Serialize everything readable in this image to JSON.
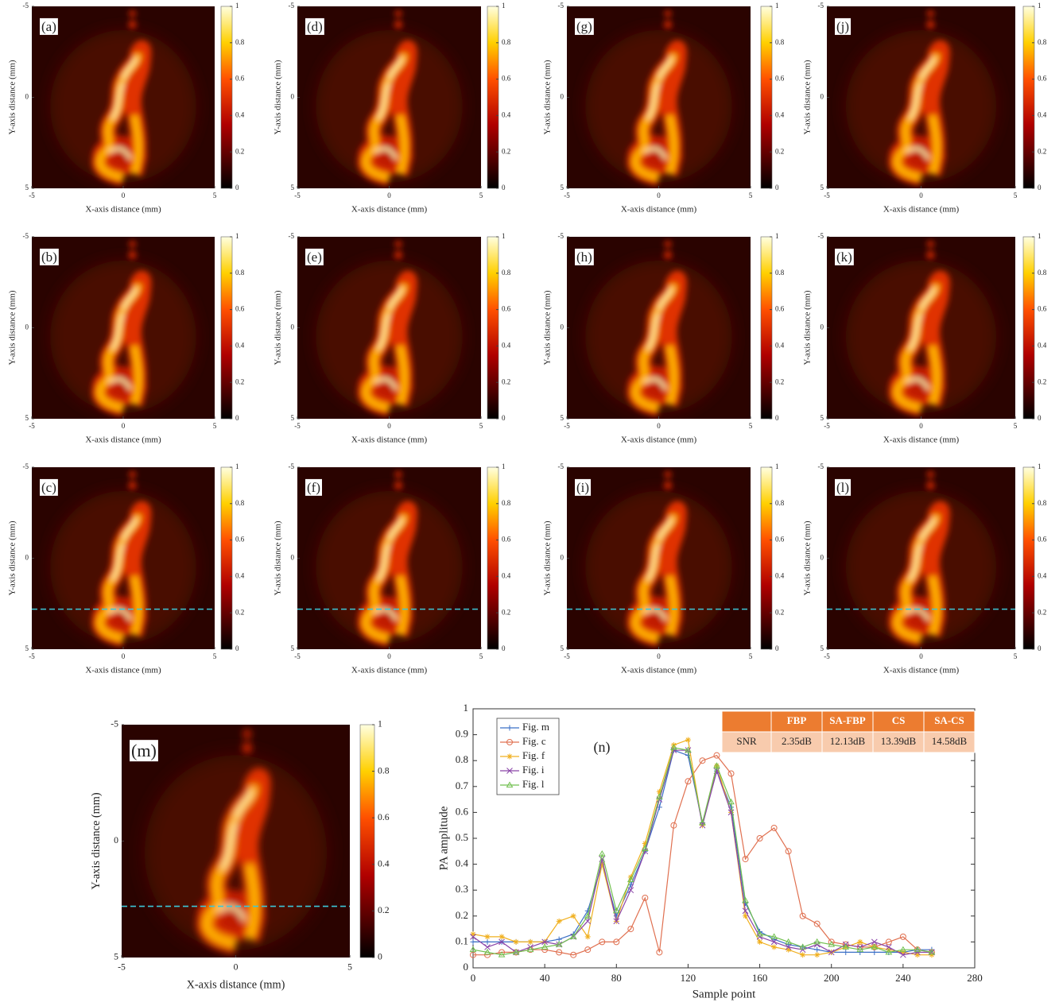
{
  "chart_data": [
    {
      "type": "image",
      "label": "(a)",
      "xlabel": "X-axis distance (mm)",
      "ylabel": "Y-axis distance (mm)",
      "xlim": [
        -5,
        5
      ],
      "ylim": [
        5,
        -5
      ],
      "xticks": [
        -5,
        0,
        5
      ],
      "yticks": [
        -5,
        0,
        5
      ],
      "clim": [
        0,
        1
      ],
      "cticks": [
        0,
        0.2,
        0.4,
        0.6,
        0.8,
        1
      ],
      "dashed_line": false
    },
    {
      "type": "image",
      "label": "(b)",
      "xlabel": "X-axis distance (mm)",
      "ylabel": "Y-axis distance (mm)",
      "xlim": [
        -5,
        5
      ],
      "ylim": [
        5,
        -5
      ],
      "xticks": [
        -5,
        0,
        5
      ],
      "yticks": [
        -5,
        0,
        5
      ],
      "clim": [
        0,
        1
      ],
      "cticks": [
        0,
        0.2,
        0.4,
        0.6,
        0.8,
        1
      ],
      "dashed_line": false
    },
    {
      "type": "image",
      "label": "(c)",
      "xlabel": "X-axis distance (mm)",
      "ylabel": "Y-axis distance (mm)",
      "xlim": [
        -5,
        5
      ],
      "ylim": [
        5,
        -5
      ],
      "xticks": [
        -5,
        0,
        5
      ],
      "yticks": [
        -5,
        0,
        5
      ],
      "clim": [
        0,
        1
      ],
      "cticks": [
        0,
        0.2,
        0.4,
        0.6,
        0.8,
        1
      ],
      "dashed_line": true
    },
    {
      "type": "image",
      "label": "(d)",
      "xlabel": "X-axis distance (mm)",
      "ylabel": "Y-axis distance (mm)",
      "xlim": [
        -5,
        5
      ],
      "ylim": [
        5,
        -5
      ],
      "xticks": [
        -5,
        0,
        5
      ],
      "yticks": [
        -5,
        0,
        5
      ],
      "clim": [
        0,
        1
      ],
      "cticks": [
        0,
        0.2,
        0.4,
        0.6,
        0.8,
        1
      ],
      "dashed_line": false
    },
    {
      "type": "image",
      "label": "(e)",
      "xlabel": "X-axis distance (mm)",
      "ylabel": "Y-axis distance (mm)",
      "xlim": [
        -5,
        5
      ],
      "ylim": [
        5,
        -5
      ],
      "xticks": [
        -5,
        0,
        5
      ],
      "yticks": [
        -5,
        0,
        5
      ],
      "clim": [
        0,
        1
      ],
      "cticks": [
        0,
        0.2,
        0.4,
        0.6,
        0.8,
        1
      ],
      "dashed_line": false
    },
    {
      "type": "image",
      "label": "(f)",
      "xlabel": "X-axis distance (mm)",
      "ylabel": "Y-axis distance (mm)",
      "xlim": [
        -5,
        5
      ],
      "ylim": [
        5,
        -5
      ],
      "xticks": [
        -5,
        0,
        5
      ],
      "yticks": [
        -5,
        0,
        5
      ],
      "clim": [
        0,
        1
      ],
      "cticks": [
        0,
        0.2,
        0.4,
        0.6,
        0.8,
        1
      ],
      "dashed_line": true
    },
    {
      "type": "image",
      "label": "(g)",
      "xlabel": "X-axis distance (mm)",
      "ylabel": "Y-axis distance (mm)",
      "xlim": [
        -5,
        5
      ],
      "ylim": [
        5,
        -5
      ],
      "xticks": [
        -5,
        0,
        5
      ],
      "yticks": [
        -5,
        0,
        5
      ],
      "clim": [
        0,
        1
      ],
      "cticks": [
        0,
        0.2,
        0.4,
        0.6,
        0.8,
        1
      ],
      "dashed_line": false
    },
    {
      "type": "image",
      "label": "(h)",
      "xlabel": "X-axis distance (mm)",
      "ylabel": "Y-axis distance (mm)",
      "xlim": [
        -5,
        5
      ],
      "ylim": [
        5,
        -5
      ],
      "xticks": [
        -5,
        0,
        5
      ],
      "yticks": [
        -5,
        0,
        5
      ],
      "clim": [
        0,
        1
      ],
      "cticks": [
        0,
        0.2,
        0.4,
        0.6,
        0.8,
        1
      ],
      "dashed_line": false
    },
    {
      "type": "image",
      "label": "(i)",
      "xlabel": "X-axis distance (mm)",
      "ylabel": "Y-axis distance (mm)",
      "xlim": [
        -5,
        5
      ],
      "ylim": [
        5,
        -5
      ],
      "xticks": [
        -5,
        0,
        5
      ],
      "yticks": [
        -5,
        0,
        5
      ],
      "clim": [
        0,
        1
      ],
      "cticks": [
        0,
        0.2,
        0.4,
        0.6,
        0.8,
        1
      ],
      "dashed_line": true
    },
    {
      "type": "image",
      "label": "(j)",
      "xlabel": "X-axis distance (mm)",
      "ylabel": "Y-axis distance (mm)",
      "xlim": [
        -5,
        5
      ],
      "ylim": [
        5,
        -5
      ],
      "xticks": [
        -5,
        0,
        5
      ],
      "yticks": [
        -5,
        0,
        5
      ],
      "clim": [
        0,
        1
      ],
      "cticks": [
        0,
        0.2,
        0.4,
        0.6,
        0.8,
        1
      ],
      "dashed_line": false
    },
    {
      "type": "image",
      "label": "(k)",
      "xlabel": "X-axis distance (mm)",
      "ylabel": "Y-axis distance (mm)",
      "xlim": [
        -5,
        5
      ],
      "ylim": [
        5,
        -5
      ],
      "xticks": [
        -5,
        0,
        5
      ],
      "yticks": [
        -5,
        0,
        5
      ],
      "clim": [
        0,
        1
      ],
      "cticks": [
        0,
        0.2,
        0.4,
        0.6,
        0.8,
        1
      ],
      "dashed_line": false
    },
    {
      "type": "image",
      "label": "(l)",
      "xlabel": "X-axis distance (mm)",
      "ylabel": "Y-axis distance (mm)",
      "xlim": [
        -5,
        5
      ],
      "ylim": [
        5,
        -5
      ],
      "xticks": [
        -5,
        0,
        5
      ],
      "yticks": [
        -5,
        0,
        5
      ],
      "clim": [
        0,
        1
      ],
      "cticks": [
        0,
        0.2,
        0.4,
        0.6,
        0.8,
        1
      ],
      "dashed_line": true
    },
    {
      "type": "image",
      "label": "(m)",
      "xlabel": "X-axis distance (mm)",
      "ylabel": "Y-axis distance (mm)",
      "xlim": [
        -5,
        5
      ],
      "ylim": [
        5,
        -5
      ],
      "xticks": [
        -5,
        0,
        5
      ],
      "yticks": [
        -5,
        0,
        5
      ],
      "clim": [
        0,
        1
      ],
      "cticks": [
        0,
        0.2,
        0.4,
        0.6,
        0.8,
        1
      ],
      "dashed_line": true
    },
    {
      "type": "line",
      "annotation": "(n)",
      "xlabel": "Sample point",
      "ylabel": "PA amplitude",
      "xlim": [
        0,
        280
      ],
      "ylim": [
        0,
        1
      ],
      "xticks": [
        0,
        40,
        80,
        120,
        160,
        200,
        240,
        280
      ],
      "yticks": [
        0,
        0.1,
        0.2,
        0.3,
        0.4,
        0.5,
        0.6,
        0.7,
        0.8,
        0.9,
        1
      ],
      "legend": "upper left",
      "x": [
        0,
        8,
        16,
        24,
        32,
        40,
        48,
        56,
        64,
        72,
        80,
        88,
        96,
        104,
        112,
        120,
        128,
        136,
        144,
        152,
        160,
        168,
        176,
        184,
        192,
        200,
        208,
        216,
        224,
        232,
        240,
        248,
        256
      ],
      "series": [
        {
          "name": "Fig. m",
          "color": "#3b6fc6",
          "marker": "plus",
          "values": [
            0.1,
            0.1,
            0.1,
            0.1,
            0.1,
            0.1,
            0.11,
            0.13,
            0.22,
            0.4,
            0.2,
            0.32,
            0.45,
            0.62,
            0.84,
            0.82,
            0.56,
            0.76,
            0.62,
            0.25,
            0.14,
            0.11,
            0.09,
            0.08,
            0.07,
            0.06,
            0.06,
            0.06,
            0.06,
            0.06,
            0.06,
            0.07,
            0.07
          ]
        },
        {
          "name": "Fig. c",
          "color": "#e07050",
          "marker": "circle",
          "values": [
            0.05,
            0.05,
            0.06,
            0.06,
            0.07,
            0.07,
            0.06,
            0.05,
            0.07,
            0.1,
            0.1,
            0.15,
            0.27,
            0.06,
            0.55,
            0.72,
            0.8,
            0.82,
            0.75,
            0.42,
            0.5,
            0.54,
            0.45,
            0.2,
            0.17,
            0.1,
            0.09,
            0.08,
            0.08,
            0.1,
            0.12,
            0.07,
            0.06
          ]
        },
        {
          "name": "Fig. f",
          "color": "#f0b020",
          "marker": "star",
          "values": [
            0.13,
            0.12,
            0.12,
            0.1,
            0.1,
            0.1,
            0.18,
            0.2,
            0.12,
            0.4,
            0.18,
            0.35,
            0.48,
            0.68,
            0.86,
            0.88,
            0.55,
            0.78,
            0.6,
            0.2,
            0.1,
            0.08,
            0.07,
            0.05,
            0.05,
            0.06,
            0.08,
            0.1,
            0.08,
            0.07,
            0.06,
            0.05,
            0.05
          ]
        },
        {
          "name": "Fig. i",
          "color": "#8a45a8",
          "marker": "cross",
          "values": [
            0.12,
            0.08,
            0.1,
            0.06,
            0.08,
            0.1,
            0.09,
            0.12,
            0.18,
            0.42,
            0.18,
            0.3,
            0.45,
            0.65,
            0.84,
            0.84,
            0.55,
            0.76,
            0.6,
            0.22,
            0.12,
            0.1,
            0.08,
            0.07,
            0.09,
            0.06,
            0.09,
            0.08,
            0.1,
            0.08,
            0.05,
            0.06,
            0.06
          ]
        },
        {
          "name": "Fig. l",
          "color": "#72c050",
          "marker": "triangle",
          "values": [
            0.07,
            0.06,
            0.05,
            0.06,
            0.07,
            0.08,
            0.09,
            0.12,
            0.2,
            0.44,
            0.22,
            0.34,
            0.46,
            0.66,
            0.85,
            0.84,
            0.56,
            0.78,
            0.64,
            0.26,
            0.13,
            0.12,
            0.1,
            0.08,
            0.1,
            0.09,
            0.08,
            0.07,
            0.08,
            0.06,
            0.07,
            0.07,
            0.06
          ]
        }
      ],
      "table": {
        "columns": [
          "FBP",
          "SA-FBP",
          "CS",
          "SA-CS"
        ],
        "rows": [
          [
            "SNR",
            "2.35dB",
            "12.13dB",
            "13.39dB",
            "14.58dB"
          ]
        ],
        "header_color": "#ec7c30",
        "row_color": "#f8cbad"
      }
    }
  ]
}
